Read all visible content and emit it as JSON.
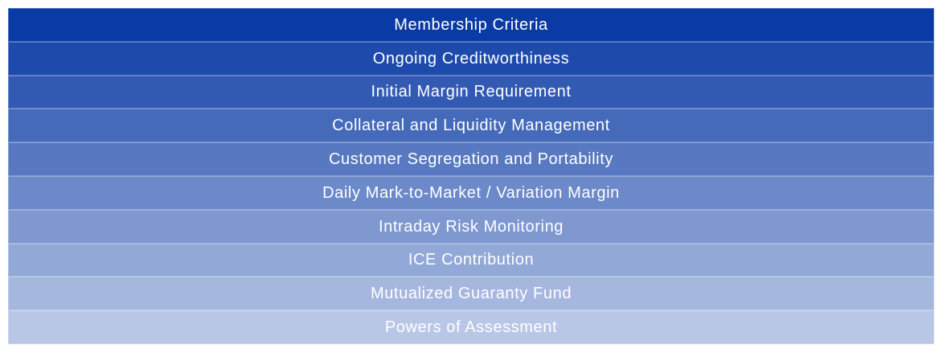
{
  "diagram": {
    "kind": "layered-stack",
    "text_color": "#FFFFFF",
    "background_color": "#FFFFFF",
    "gradient_top_color": "#0A3AA4",
    "gradient_bottom_color": "#B9C7E6",
    "layers": [
      {
        "label": "Membership Criteria",
        "color": "#0A3AA4"
      },
      {
        "label": "Ongoing Creditworthiness",
        "color": "#1E4BAB"
      },
      {
        "label": "Initial Margin Requirement",
        "color": "#325AB3"
      },
      {
        "label": "Collateral and Liquidity Management",
        "color": "#456ABA"
      },
      {
        "label": "Customer Segregation and Portability",
        "color": "#5879C1"
      },
      {
        "label": "Daily Mark-to-Market / Variation Margin",
        "color": "#6C89C9"
      },
      {
        "label": "Intraday Risk Monitoring",
        "color": "#7F98D0"
      },
      {
        "label": "ICE Contribution",
        "color": "#92A8D7"
      },
      {
        "label": "Mutualized Guaranty Fund",
        "color": "#A6B7DF"
      },
      {
        "label": "Powers of Assessment",
        "color": "#B9C7E6"
      }
    ]
  }
}
